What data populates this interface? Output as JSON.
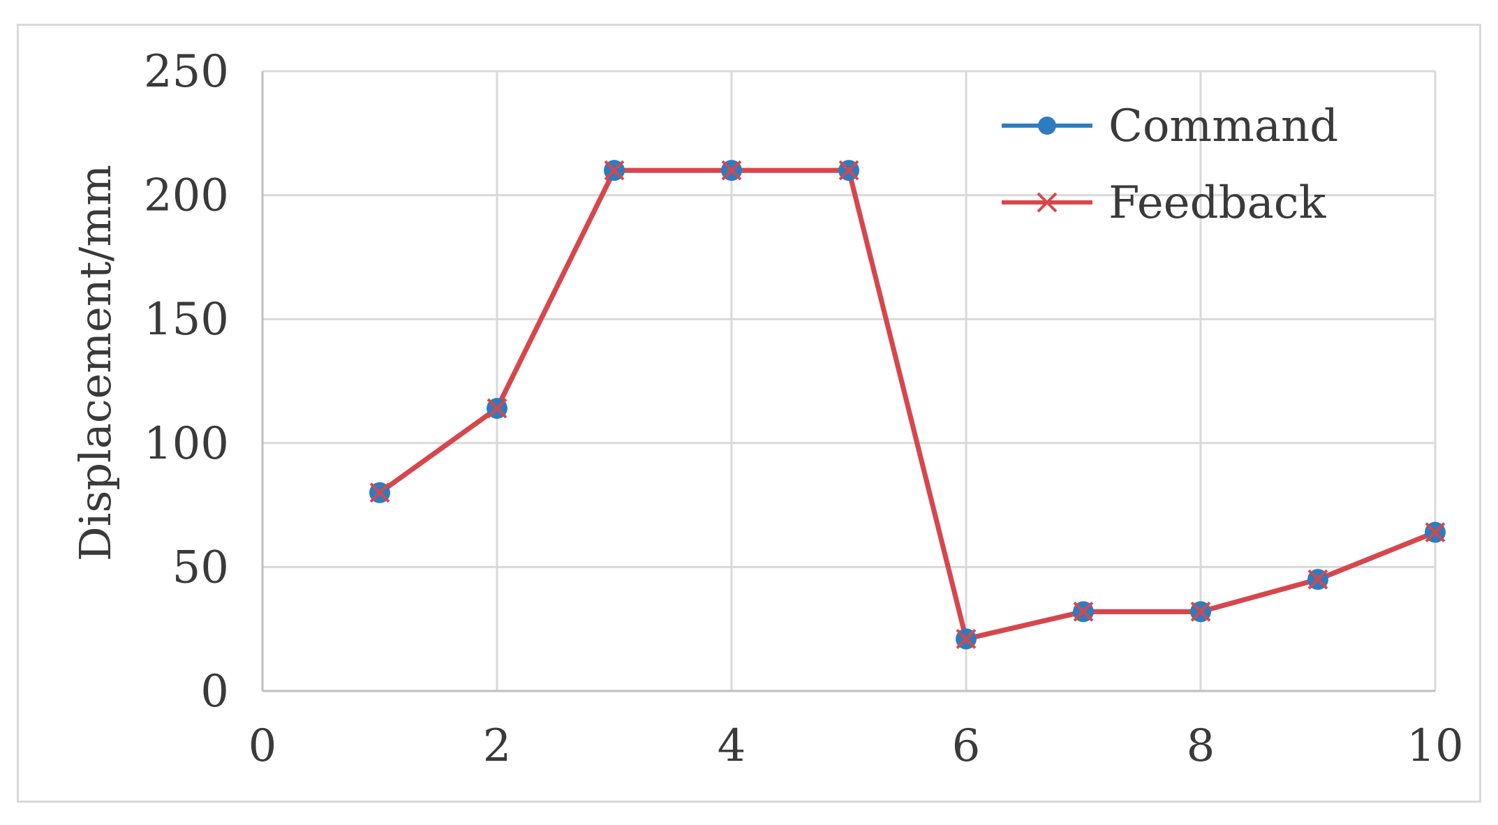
{
  "chart_data": {
    "type": "line",
    "title": "",
    "xlabel": "",
    "ylabel": "Displacement/mm",
    "xlim": [
      0,
      10
    ],
    "ylim": [
      0,
      250
    ],
    "x_ticks": [
      0,
      2,
      4,
      6,
      8,
      10
    ],
    "y_ticks": [
      0,
      50,
      100,
      150,
      200,
      250
    ],
    "grid": true,
    "legend_position": "top-right",
    "x": [
      1,
      2,
      3,
      4,
      5,
      6,
      7,
      8,
      9,
      10
    ],
    "series": [
      {
        "name": "Command",
        "marker": "circle",
        "color": "#2e7cc0",
        "values": [
          80,
          114,
          210,
          210,
          210,
          21,
          32,
          32,
          45,
          64
        ]
      },
      {
        "name": "Feedback",
        "marker": "x",
        "color": "#d9464a",
        "values": [
          80,
          114,
          210,
          210,
          210,
          21,
          32,
          32,
          45,
          64
        ]
      }
    ]
  }
}
